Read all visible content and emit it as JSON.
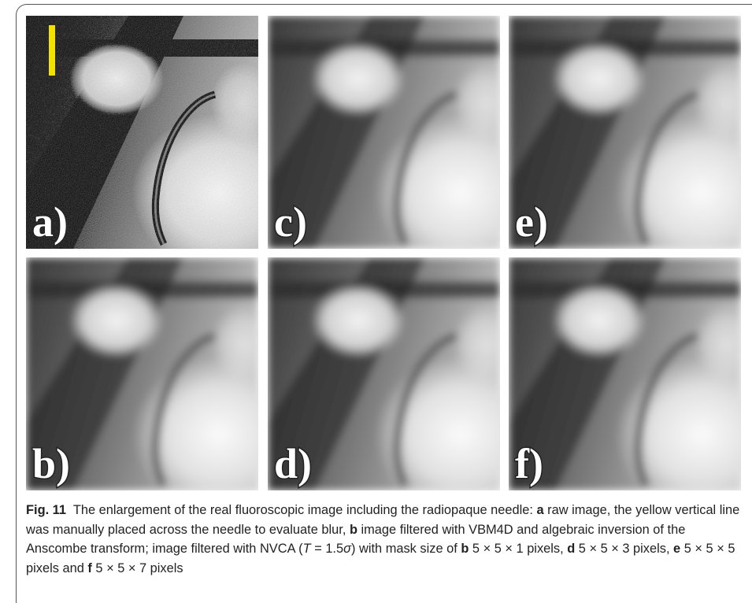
{
  "panels": [
    {
      "label": "a)"
    },
    {
      "label": "c)"
    },
    {
      "label": "e)"
    },
    {
      "label": "b)"
    },
    {
      "label": "d)"
    },
    {
      "label": "f)"
    }
  ],
  "caption": {
    "runs": [
      {
        "text": "Fig. 11",
        "style": "bold"
      },
      {
        "text": "  The enlargement of the real fluoroscopic image including the radiopaque needle: ",
        "style": "plain"
      },
      {
        "text": "a",
        "style": "bold"
      },
      {
        "text": " raw image, the yellow vertical line was manually placed across the needle to evaluate blur, ",
        "style": "plain"
      },
      {
        "text": "b",
        "style": "bold"
      },
      {
        "text": " image filtered with VBM4D and algebraic inversion of the Anscombe transform; image filtered with NVCA (",
        "style": "plain"
      },
      {
        "text": "T",
        "style": "italic"
      },
      {
        "text": " = 1.5",
        "style": "plain"
      },
      {
        "text": "σ",
        "style": "italic"
      },
      {
        "text": ") with mask size of ",
        "style": "plain"
      },
      {
        "text": "b",
        "style": "bold"
      },
      {
        "text": " 5 × 5 × 1 pixels, ",
        "style": "plain"
      },
      {
        "text": "d",
        "style": "bold"
      },
      {
        "text": " 5 × 5 × 3 pixels, ",
        "style": "plain"
      },
      {
        "text": "e",
        "style": "bold"
      },
      {
        "text": " 5 × 5 × 5 pixels and ",
        "style": "plain"
      },
      {
        "text": "f",
        "style": "bold"
      },
      {
        "text": " 5 × 5 × 7 pixels",
        "style": "plain"
      }
    ]
  }
}
